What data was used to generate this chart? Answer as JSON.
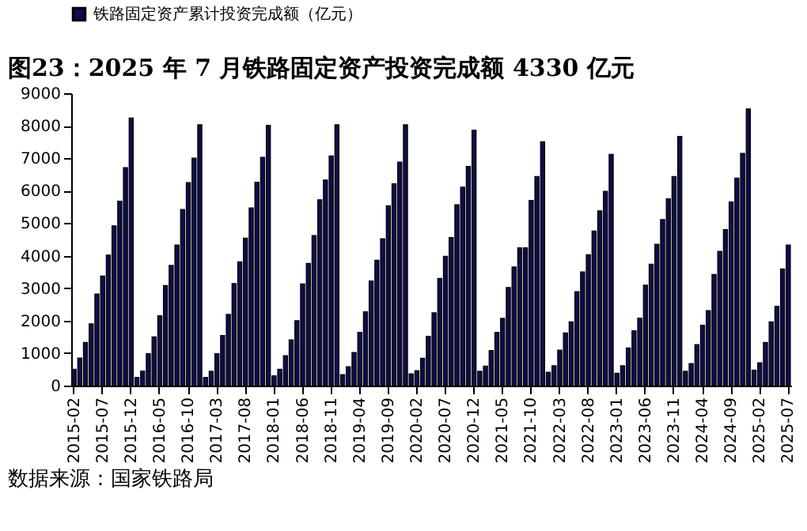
{
  "chart_data": {
    "type": "bar",
    "title": "图23：2025 年 7 月铁路固定资产投资完成额 4330 亿元",
    "categories": [
      "2015-02",
      null,
      null,
      null,
      null,
      "2015-07",
      null,
      null,
      null,
      null,
      "2015-12",
      null,
      null,
      null,
      null,
      "2016-05",
      null,
      null,
      null,
      null,
      "2016-10",
      null,
      null,
      null,
      null,
      "2017-03",
      null,
      null,
      null,
      null,
      "2017-08",
      null,
      null,
      null,
      null,
      "2018-01",
      null,
      null,
      null,
      null,
      "2018-06",
      null,
      null,
      null,
      null,
      "2018-11",
      null,
      null,
      null,
      null,
      "2019-04",
      null,
      null,
      null,
      null,
      "2019-09",
      null,
      null,
      null,
      null,
      "2020-02",
      null,
      null,
      null,
      null,
      "2020-07",
      null,
      null,
      null,
      null,
      "2020-12",
      null,
      null,
      null,
      null,
      "2021-05",
      null,
      null,
      null,
      null,
      "2021-10",
      null,
      null,
      null,
      null,
      "2022-03",
      null,
      null,
      null,
      null,
      "2022-08",
      null,
      null,
      null,
      null,
      "2023-01",
      null,
      null,
      null,
      null,
      "2023-06",
      null,
      null,
      null,
      null,
      "2023-11",
      null,
      null,
      null,
      null,
      "2024-04",
      null,
      null,
      null,
      null,
      "2024-09",
      null,
      null,
      null,
      null,
      "2025-02",
      null,
      null,
      null,
      null,
      "2025-07"
    ],
    "series": [
      {
        "name": "铁路固定资产累计投资完成额（亿元）",
        "color": "#0d0d4d",
        "values": [
          500,
          850,
          1330,
          1900,
          2820,
          3370,
          4020,
          4920,
          5680,
          6710,
          8240,
          250,
          450,
          980,
          1500,
          2150,
          3080,
          3700,
          4330,
          5420,
          6250,
          7000,
          8030,
          250,
          440,
          980,
          1540,
          2190,
          3140,
          3810,
          4540,
          5470,
          6260,
          7030,
          8010,
          300,
          500,
          920,
          1410,
          2000,
          3130,
          3760,
          4620,
          5720,
          6330,
          7070,
          8030,
          340,
          580,
          1020,
          1640,
          2270,
          3220,
          3860,
          4520,
          5540,
          6210,
          6880,
          8030,
          360,
          460,
          840,
          1520,
          2240,
          3300,
          3980,
          4560,
          5570,
          6110,
          6750,
          7860,
          440,
          600,
          1080,
          1640,
          2070,
          3020,
          3650,
          4240,
          4240,
          5700,
          6440,
          7510,
          410,
          610,
          1090,
          1620,
          1960,
          2890,
          3500,
          4030,
          4760,
          5380,
          5980,
          7120,
          380,
          610,
          1160,
          1690,
          2080,
          3090,
          3740,
          4350,
          5110,
          5750,
          6440,
          7670,
          440,
          680,
          1260,
          1860,
          2310,
          3420,
          4130,
          4800,
          5650,
          6390,
          7150,
          8520,
          480,
          700,
          1330,
          1960,
          2440,
          3590,
          4330
        ]
      }
    ],
    "ylim": [
      0,
      9000
    ],
    "yticks": [
      0,
      1000,
      2000,
      3000,
      4000,
      5000,
      6000,
      7000,
      8000,
      9000
    ],
    "grid": false,
    "legend": "top",
    "annotations": [
      "数据来源：国家铁路局"
    ]
  }
}
